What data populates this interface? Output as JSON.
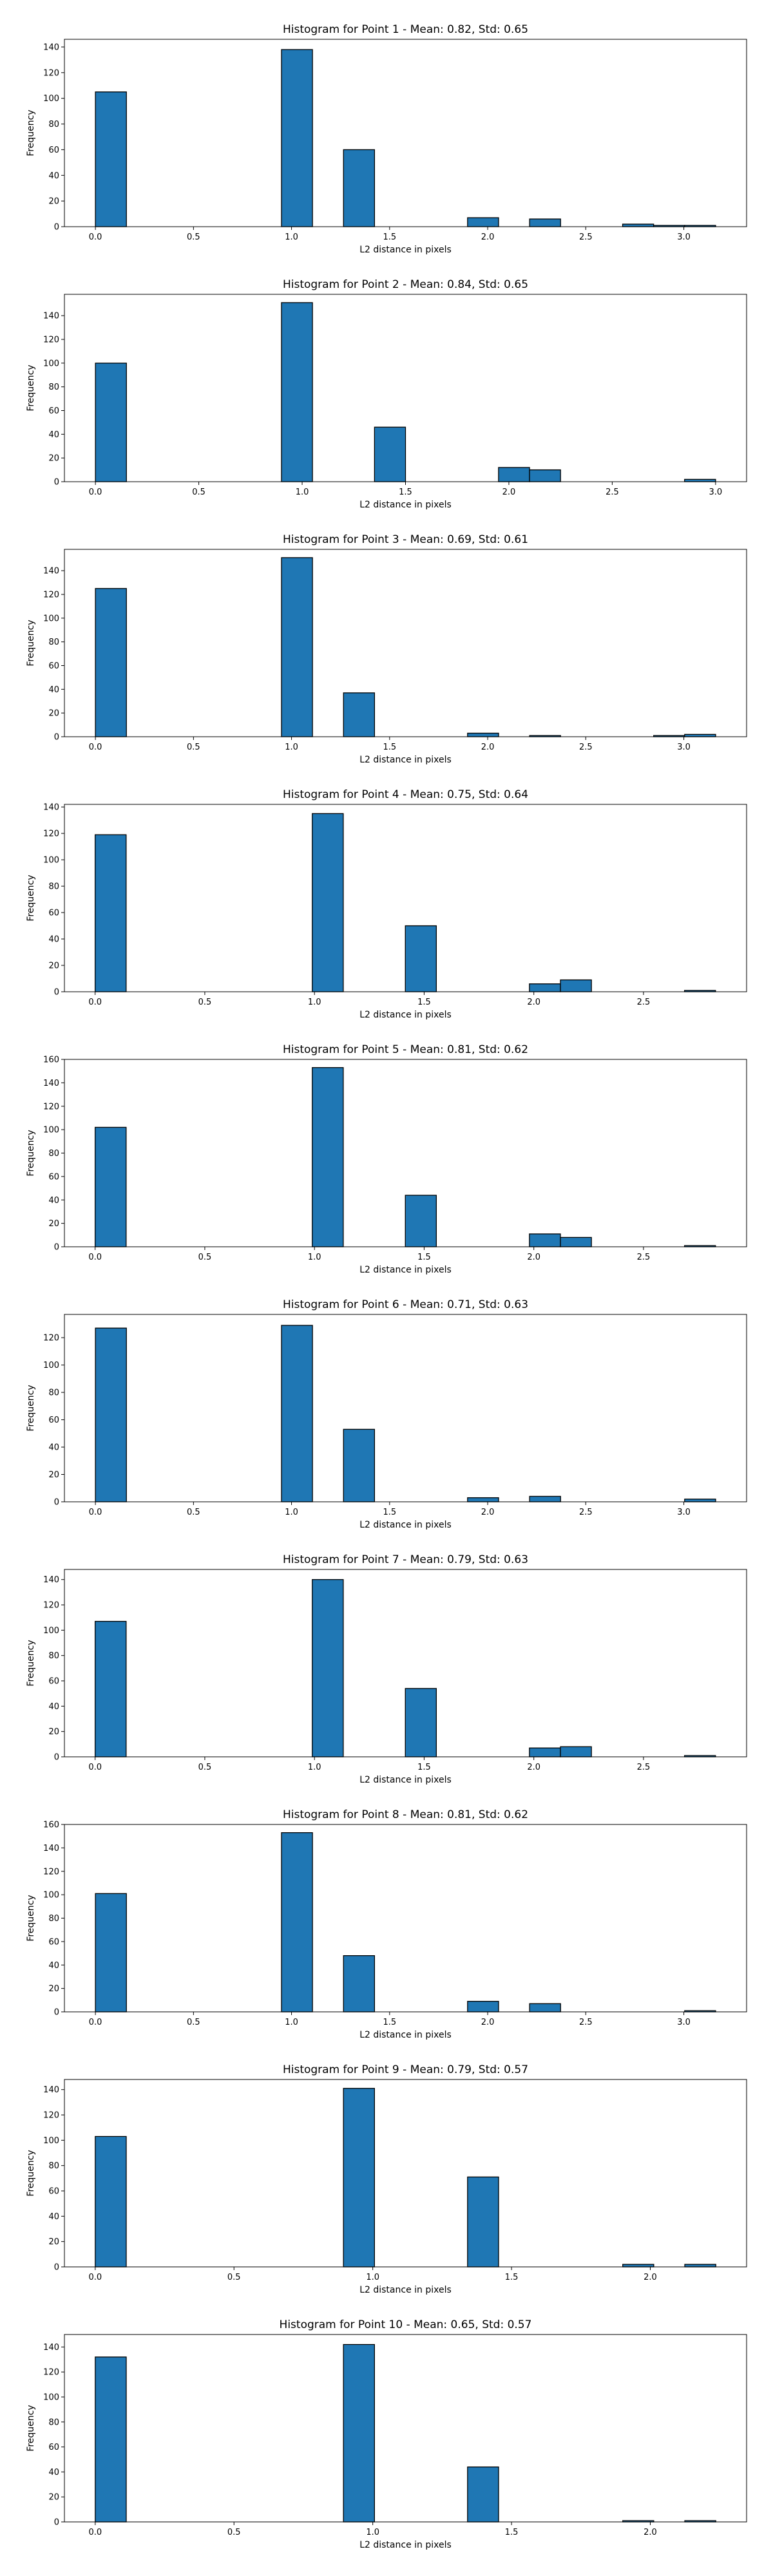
{
  "chart_data": [
    {
      "type": "bar",
      "title": "Histogram for Point 1 - Mean: 0.82, Std: 0.65",
      "xlabel": "L2 distance in pixels",
      "ylabel": "Frequency",
      "xlim": [
        -0.158,
        3.32
      ],
      "ylim": [
        0,
        146
      ],
      "xticks": [
        0.0,
        0.5,
        1.0,
        1.5,
        2.0,
        2.5,
        3.0
      ],
      "yticks": [
        0,
        20,
        40,
        60,
        80,
        100,
        120,
        140
      ],
      "bar_color": "#1f77b4",
      "edge_color": "#000000",
      "grid": false,
      "x": [
        0.0,
        0.1581,
        0.3162,
        0.4743,
        0.6325,
        0.7906,
        0.9487,
        1.1068,
        1.2649,
        1.423,
        1.5811,
        1.7392,
        1.8974,
        2.0555,
        2.2136,
        2.3717,
        2.5298,
        2.6879,
        2.846,
        3.0041
      ],
      "bin_width": 0.1581,
      "values": [
        105,
        0,
        0,
        0,
        0,
        0,
        138,
        0,
        60,
        0,
        0,
        0,
        7,
        0,
        6,
        0,
        0,
        2,
        1,
        1
      ]
    },
    {
      "type": "bar",
      "title": "Histogram for Point 2 - Mean: 0.84, Std: 0.65",
      "xlabel": "L2 distance in pixels",
      "ylabel": "Frequency",
      "xlim": [
        -0.15,
        3.15
      ],
      "ylim": [
        0,
        158
      ],
      "xticks": [
        0.0,
        0.5,
        1.0,
        1.5,
        2.0,
        2.5,
        3.0
      ],
      "yticks": [
        0,
        20,
        40,
        60,
        80,
        100,
        120,
        140
      ],
      "bar_color": "#1f77b4",
      "edge_color": "#000000",
      "grid": false,
      "x": [
        0.0,
        0.15,
        0.3,
        0.45,
        0.6,
        0.75,
        0.9,
        1.05,
        1.2,
        1.35,
        1.5,
        1.65,
        1.8,
        1.95,
        2.1,
        2.25,
        2.4,
        2.55,
        2.7,
        2.85
      ],
      "bin_width": 0.15,
      "values": [
        100,
        0,
        0,
        0,
        0,
        0,
        151,
        0,
        0,
        46,
        0,
        0,
        0,
        12,
        10,
        0,
        0,
        0,
        0,
        2
      ]
    },
    {
      "type": "bar",
      "title": "Histogram for Point 3 - Mean: 0.69, Std: 0.61",
      "xlabel": "L2 distance in pixels",
      "ylabel": "Frequency",
      "xlim": [
        -0.158,
        3.32
      ],
      "ylim": [
        0,
        158
      ],
      "xticks": [
        0.0,
        0.5,
        1.0,
        1.5,
        2.0,
        2.5,
        3.0
      ],
      "yticks": [
        0,
        20,
        40,
        60,
        80,
        100,
        120,
        140
      ],
      "bar_color": "#1f77b4",
      "edge_color": "#000000",
      "grid": false,
      "x": [
        0.0,
        0.1581,
        0.3162,
        0.4743,
        0.6325,
        0.7906,
        0.9487,
        1.1068,
        1.2649,
        1.423,
        1.5811,
        1.7392,
        1.8974,
        2.0555,
        2.2136,
        2.3717,
        2.5298,
        2.6879,
        2.846,
        3.0041
      ],
      "bin_width": 0.1581,
      "values": [
        125,
        0,
        0,
        0,
        0,
        0,
        151,
        0,
        37,
        0,
        0,
        0,
        3,
        0,
        1,
        0,
        0,
        0,
        1,
        2
      ]
    },
    {
      "type": "bar",
      "title": "Histogram for Point 4 - Mean: 0.75, Std: 0.64",
      "xlabel": "L2 distance in pixels",
      "ylabel": "Frequency",
      "xlim": [
        -0.14,
        2.97
      ],
      "ylim": [
        0,
        142
      ],
      "xticks": [
        0.0,
        0.5,
        1.0,
        1.5,
        2.0,
        2.5
      ],
      "yticks": [
        0,
        20,
        40,
        60,
        80,
        100,
        120,
        140
      ],
      "bar_color": "#1f77b4",
      "edge_color": "#000000",
      "grid": false,
      "x": [
        0.0,
        0.1414,
        0.2828,
        0.4243,
        0.5657,
        0.7071,
        0.8485,
        0.9899,
        1.1314,
        1.2728,
        1.4142,
        1.5556,
        1.6971,
        1.8385,
        1.9799,
        2.1213,
        2.2627,
        2.4042,
        2.5456,
        2.687
      ],
      "bin_width": 0.1414,
      "values": [
        119,
        0,
        0,
        0,
        0,
        0,
        0,
        135,
        0,
        0,
        50,
        0,
        0,
        0,
        6,
        9,
        0,
        0,
        0,
        1
      ]
    },
    {
      "type": "bar",
      "title": "Histogram for Point 5 - Mean: 0.81, Std: 0.62",
      "xlabel": "L2 distance in pixels",
      "ylabel": "Frequency",
      "xlim": [
        -0.14,
        2.97
      ],
      "ylim": [
        0,
        160
      ],
      "xticks": [
        0.0,
        0.5,
        1.0,
        1.5,
        2.0,
        2.5
      ],
      "yticks": [
        0,
        20,
        40,
        60,
        80,
        100,
        120,
        140,
        160
      ],
      "bar_color": "#1f77b4",
      "edge_color": "#000000",
      "grid": false,
      "x": [
        0.0,
        0.1414,
        0.2828,
        0.4243,
        0.5657,
        0.7071,
        0.8485,
        0.9899,
        1.1314,
        1.2728,
        1.4142,
        1.5556,
        1.6971,
        1.8385,
        1.9799,
        2.1213,
        2.2627,
        2.4042,
        2.5456,
        2.687
      ],
      "bin_width": 0.1414,
      "values": [
        102,
        0,
        0,
        0,
        0,
        0,
        0,
        153,
        0,
        0,
        44,
        0,
        0,
        0,
        11,
        8,
        0,
        0,
        0,
        1
      ]
    },
    {
      "type": "bar",
      "title": "Histogram for Point 6 - Mean: 0.71, Std: 0.63",
      "xlabel": "L2 distance in pixels",
      "ylabel": "Frequency",
      "xlim": [
        -0.158,
        3.32
      ],
      "ylim": [
        0,
        137
      ],
      "xticks": [
        0.0,
        0.5,
        1.0,
        1.5,
        2.0,
        2.5,
        3.0
      ],
      "yticks": [
        0,
        20,
        40,
        60,
        80,
        100,
        120
      ],
      "bar_color": "#1f77b4",
      "edge_color": "#000000",
      "grid": false,
      "x": [
        0.0,
        0.1581,
        0.3162,
        0.4743,
        0.6325,
        0.7906,
        0.9487,
        1.1068,
        1.2649,
        1.423,
        1.5811,
        1.7392,
        1.8974,
        2.0555,
        2.2136,
        2.3717,
        2.5298,
        2.6879,
        2.846,
        3.0041
      ],
      "bin_width": 0.1581,
      "values": [
        127,
        0,
        0,
        0,
        0,
        0,
        129,
        0,
        53,
        0,
        0,
        0,
        3,
        0,
        4,
        0,
        0,
        0,
        0,
        2
      ]
    },
    {
      "type": "bar",
      "title": "Histogram for Point 7 - Mean: 0.79, Std: 0.63",
      "xlabel": "L2 distance in pixels",
      "ylabel": "Frequency",
      "xlim": [
        -0.14,
        2.97
      ],
      "ylim": [
        0,
        148
      ],
      "xticks": [
        0.0,
        0.5,
        1.0,
        1.5,
        2.0,
        2.5
      ],
      "yticks": [
        0,
        20,
        40,
        60,
        80,
        100,
        120,
        140
      ],
      "bar_color": "#1f77b4",
      "edge_color": "#000000",
      "grid": false,
      "x": [
        0.0,
        0.1414,
        0.2828,
        0.4243,
        0.5657,
        0.7071,
        0.8485,
        0.9899,
        1.1314,
        1.2728,
        1.4142,
        1.5556,
        1.6971,
        1.8385,
        1.9799,
        2.1213,
        2.2627,
        2.4042,
        2.5456,
        2.687
      ],
      "bin_width": 0.1414,
      "values": [
        107,
        0,
        0,
        0,
        0,
        0,
        0,
        140,
        0,
        0,
        54,
        0,
        0,
        0,
        7,
        8,
        0,
        0,
        0,
        1
      ]
    },
    {
      "type": "bar",
      "title": "Histogram for Point 8 - Mean: 0.81, Std: 0.62",
      "xlabel": "L2 distance in pixels",
      "ylabel": "Frequency",
      "xlim": [
        -0.158,
        3.32
      ],
      "ylim": [
        0,
        160
      ],
      "xticks": [
        0.0,
        0.5,
        1.0,
        1.5,
        2.0,
        2.5,
        3.0
      ],
      "yticks": [
        0,
        20,
        40,
        60,
        80,
        100,
        120,
        140,
        160
      ],
      "bar_color": "#1f77b4",
      "edge_color": "#000000",
      "grid": false,
      "x": [
        0.0,
        0.1581,
        0.3162,
        0.4743,
        0.6325,
        0.7906,
        0.9487,
        1.1068,
        1.2649,
        1.423,
        1.5811,
        1.7392,
        1.8974,
        2.0555,
        2.2136,
        2.3717,
        2.5298,
        2.6879,
        2.846,
        3.0041
      ],
      "bin_width": 0.1581,
      "values": [
        101,
        0,
        0,
        0,
        0,
        0,
        153,
        0,
        48,
        0,
        0,
        0,
        9,
        0,
        7,
        0,
        0,
        0,
        0,
        1
      ]
    },
    {
      "type": "bar",
      "title": "Histogram for Point 9 - Mean: 0.79, Std: 0.57",
      "xlabel": "L2 distance in pixels",
      "ylabel": "Frequency",
      "xlim": [
        -0.111,
        2.347
      ],
      "ylim": [
        0,
        148
      ],
      "xticks": [
        0.0,
        0.5,
        1.0,
        1.5,
        2.0
      ],
      "yticks": [
        0,
        20,
        40,
        60,
        80,
        100,
        120,
        140
      ],
      "bar_color": "#1f77b4",
      "edge_color": "#000000",
      "grid": false,
      "x": [
        0.0,
        0.1118,
        0.2236,
        0.3354,
        0.4472,
        0.559,
        0.6708,
        0.7826,
        0.8944,
        1.0062,
        1.118,
        1.2298,
        1.3416,
        1.4534,
        1.5652,
        1.677,
        1.7889,
        1.9007,
        2.0125,
        2.1243
      ],
      "bin_width": 0.1118,
      "values": [
        103,
        0,
        0,
        0,
        0,
        0,
        0,
        0,
        141,
        0,
        0,
        0,
        71,
        0,
        0,
        0,
        0,
        2,
        0,
        2
      ]
    },
    {
      "type": "bar",
      "title": "Histogram for Point 10 - Mean: 0.65, Std: 0.57",
      "xlabel": "L2 distance in pixels",
      "ylabel": "Frequency",
      "xlim": [
        -0.111,
        2.347
      ],
      "ylim": [
        0,
        150
      ],
      "xticks": [
        0.0,
        0.5,
        1.0,
        1.5,
        2.0
      ],
      "yticks": [
        0,
        20,
        40,
        60,
        80,
        100,
        120,
        140
      ],
      "bar_color": "#1f77b4",
      "edge_color": "#000000",
      "grid": false,
      "x": [
        0.0,
        0.1118,
        0.2236,
        0.3354,
        0.4472,
        0.559,
        0.6708,
        0.7826,
        0.8944,
        1.0062,
        1.118,
        1.2298,
        1.3416,
        1.4534,
        1.5652,
        1.677,
        1.7889,
        1.9007,
        2.0125,
        2.1243
      ],
      "bin_width": 0.1118,
      "values": [
        132,
        0,
        0,
        0,
        0,
        0,
        0,
        0,
        142,
        0,
        0,
        0,
        44,
        0,
        0,
        0,
        0,
        1,
        0,
        1
      ]
    }
  ]
}
